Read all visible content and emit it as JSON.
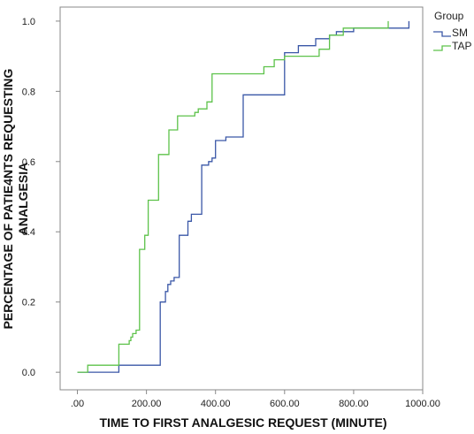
{
  "chart_data": {
    "type": "line",
    "step": true,
    "xlabel": "TIME TO FIRST ANALGESIC REQUEST (MINUTE)",
    "ylabel_lines": [
      "PERCENTAGE OF PATIE4NTS REQUESTING",
      "ANALGESIA"
    ],
    "xlim": [
      -50,
      1000
    ],
    "ylim": [
      -0.05,
      1.04
    ],
    "xticks": [
      0,
      200,
      400,
      600,
      800,
      1000
    ],
    "xtick_labels": [
      ".00",
      "200.00",
      "400.00",
      "600.00",
      "800.00",
      "1000.00"
    ],
    "yticks": [
      0,
      0.2,
      0.4,
      0.6,
      0.8,
      1.0
    ],
    "ytick_labels": [
      "0.0",
      "0.2",
      "0.4",
      "0.6",
      "0.8",
      "1.0"
    ],
    "grid": false,
    "legend": {
      "title": "Group",
      "placement": "top-right"
    },
    "series": [
      {
        "name": "SM",
        "color": "#3a57a7",
        "points": [
          [
            0,
            0
          ],
          [
            120,
            0
          ],
          [
            120,
            0.02
          ],
          [
            240,
            0.02
          ],
          [
            240,
            0.2
          ],
          [
            255,
            0.2
          ],
          [
            255,
            0.23
          ],
          [
            262,
            0.23
          ],
          [
            262,
            0.25
          ],
          [
            270,
            0.25
          ],
          [
            270,
            0.26
          ],
          [
            280,
            0.26
          ],
          [
            280,
            0.27
          ],
          [
            295,
            0.27
          ],
          [
            295,
            0.39
          ],
          [
            320,
            0.39
          ],
          [
            320,
            0.43
          ],
          [
            330,
            0.43
          ],
          [
            330,
            0.45
          ],
          [
            360,
            0.45
          ],
          [
            360,
            0.59
          ],
          [
            380,
            0.59
          ],
          [
            380,
            0.6
          ],
          [
            390,
            0.6
          ],
          [
            390,
            0.61
          ],
          [
            400,
            0.61
          ],
          [
            400,
            0.66
          ],
          [
            430,
            0.66
          ],
          [
            430,
            0.67
          ],
          [
            480,
            0.67
          ],
          [
            480,
            0.79
          ],
          [
            600,
            0.79
          ],
          [
            600,
            0.91
          ],
          [
            640,
            0.91
          ],
          [
            640,
            0.93
          ],
          [
            690,
            0.93
          ],
          [
            690,
            0.95
          ],
          [
            730,
            0.95
          ],
          [
            730,
            0.96
          ],
          [
            750,
            0.96
          ],
          [
            750,
            0.97
          ],
          [
            800,
            0.97
          ],
          [
            800,
            0.98
          ],
          [
            960,
            0.98
          ],
          [
            960,
            1.0
          ]
        ]
      },
      {
        "name": "TAP",
        "color": "#5dc24a",
        "points": [
          [
            0,
            0
          ],
          [
            30,
            0
          ],
          [
            30,
            0.02
          ],
          [
            120,
            0.02
          ],
          [
            120,
            0.08
          ],
          [
            150,
            0.08
          ],
          [
            150,
            0.09
          ],
          [
            155,
            0.09
          ],
          [
            155,
            0.1
          ],
          [
            160,
            0.1
          ],
          [
            160,
            0.11
          ],
          [
            170,
            0.11
          ],
          [
            170,
            0.12
          ],
          [
            180,
            0.12
          ],
          [
            180,
            0.35
          ],
          [
            195,
            0.35
          ],
          [
            195,
            0.39
          ],
          [
            205,
            0.39
          ],
          [
            205,
            0.49
          ],
          [
            235,
            0.49
          ],
          [
            235,
            0.62
          ],
          [
            265,
            0.62
          ],
          [
            265,
            0.69
          ],
          [
            290,
            0.69
          ],
          [
            290,
            0.73
          ],
          [
            340,
            0.73
          ],
          [
            340,
            0.74
          ],
          [
            350,
            0.74
          ],
          [
            350,
            0.75
          ],
          [
            375,
            0.75
          ],
          [
            375,
            0.77
          ],
          [
            390,
            0.77
          ],
          [
            390,
            0.85
          ],
          [
            540,
            0.85
          ],
          [
            540,
            0.87
          ],
          [
            570,
            0.87
          ],
          [
            570,
            0.89
          ],
          [
            600,
            0.89
          ],
          [
            600,
            0.9
          ],
          [
            700,
            0.9
          ],
          [
            700,
            0.92
          ],
          [
            730,
            0.92
          ],
          [
            730,
            0.96
          ],
          [
            770,
            0.96
          ],
          [
            770,
            0.98
          ],
          [
            900,
            0.98
          ],
          [
            900,
            1.0
          ]
        ]
      }
    ]
  }
}
